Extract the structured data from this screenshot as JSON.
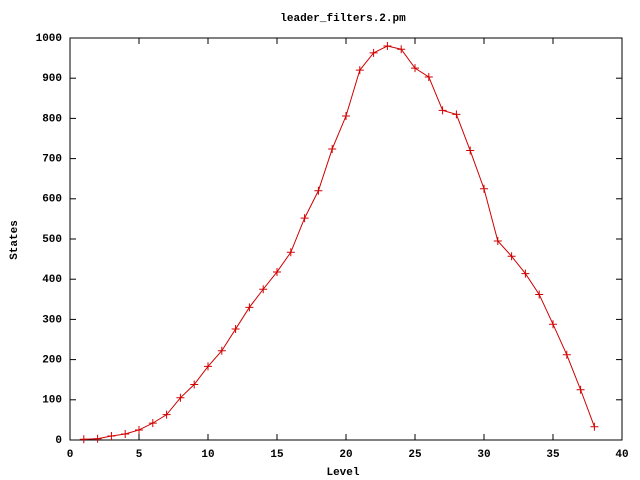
{
  "chart_data": {
    "type": "line",
    "title": "leader_filters.2.pm",
    "xlabel": "Level",
    "ylabel": "States",
    "x": [
      1,
      2,
      3,
      4,
      5,
      6,
      7,
      8,
      9,
      10,
      11,
      12,
      13,
      14,
      15,
      16,
      17,
      18,
      19,
      20,
      21,
      22,
      23,
      24,
      25,
      26,
      27,
      28,
      29,
      30,
      31,
      32,
      33,
      34,
      35,
      36,
      37,
      38
    ],
    "values": [
      2,
      3,
      10,
      15,
      25,
      42,
      63,
      105,
      138,
      183,
      222,
      276,
      330,
      375,
      418,
      467,
      552,
      620,
      724,
      806,
      920,
      963,
      980,
      972,
      925,
      903,
      820,
      810,
      720,
      625,
      495,
      457,
      414,
      362,
      288,
      212,
      125,
      33
    ],
    "color": "#d00000",
    "xlim": [
      0,
      40
    ],
    "xticks": [
      0,
      5,
      10,
      15,
      20,
      25,
      30,
      35,
      40
    ],
    "ylim": [
      0,
      1000
    ],
    "yticks": [
      0,
      100,
      200,
      300,
      400,
      500,
      600,
      700,
      800,
      900,
      1000
    ]
  }
}
